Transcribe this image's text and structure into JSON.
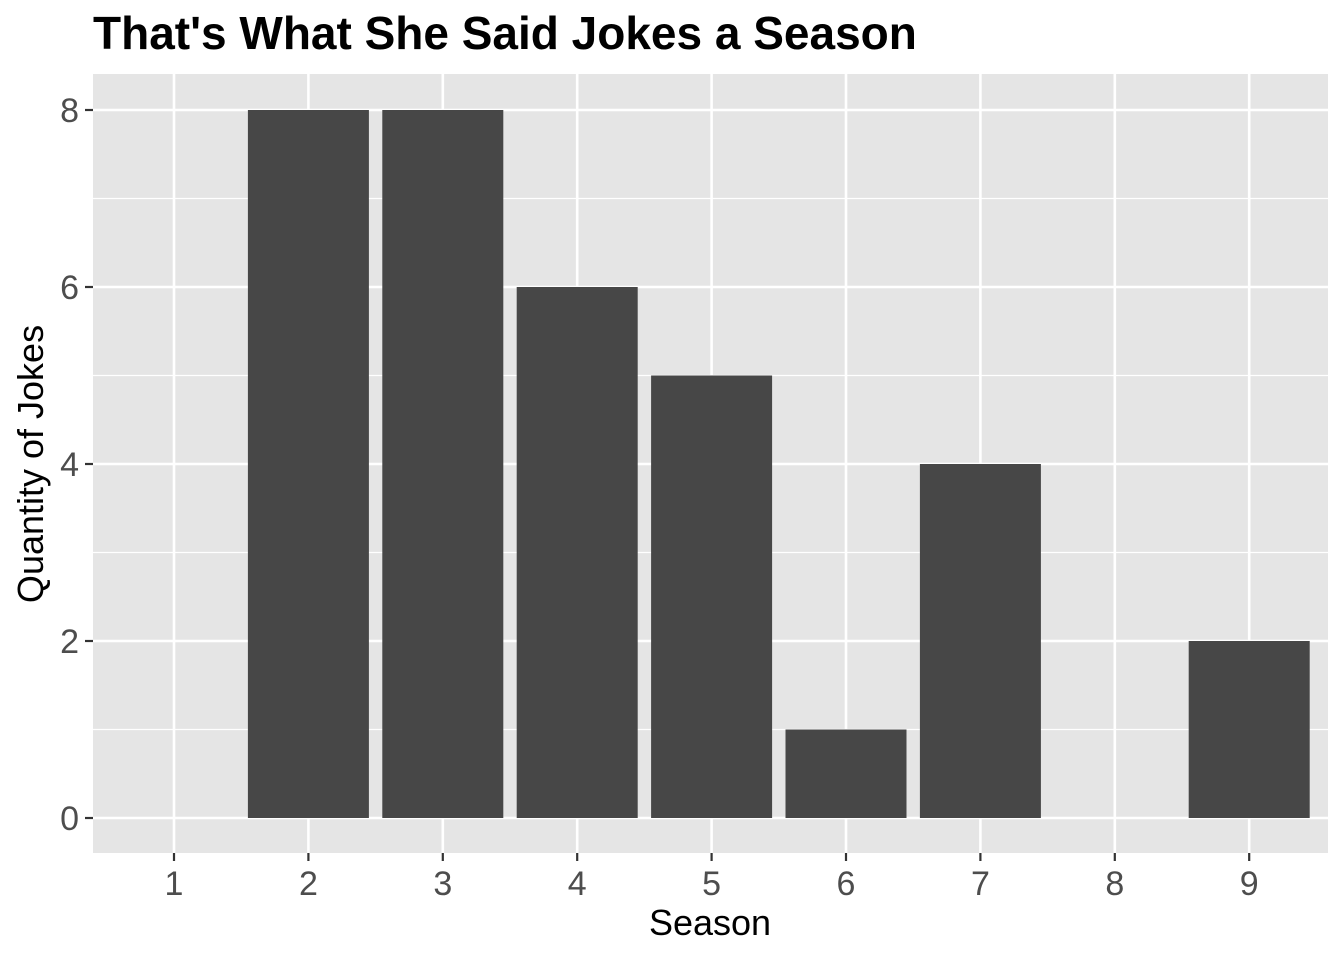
{
  "chart_data": {
    "type": "bar",
    "title": "That's What She Said Jokes a Season",
    "xlabel": "Season",
    "ylabel": "Quantity of Jokes",
    "categories": [
      "1",
      "2",
      "3",
      "4",
      "5",
      "6",
      "7",
      "8",
      "9"
    ],
    "values": [
      0,
      8,
      8,
      6,
      5,
      1,
      4,
      0,
      2
    ],
    "ylim": [
      0,
      8
    ],
    "yticks": [
      "0",
      "2",
      "4",
      "6",
      "8"
    ],
    "grid": true,
    "legend": "none",
    "colors": {
      "bar": "#474747",
      "panel": "#e5e5e5",
      "grid": "#ffffff",
      "tick_text": "#4d4d4d"
    }
  }
}
